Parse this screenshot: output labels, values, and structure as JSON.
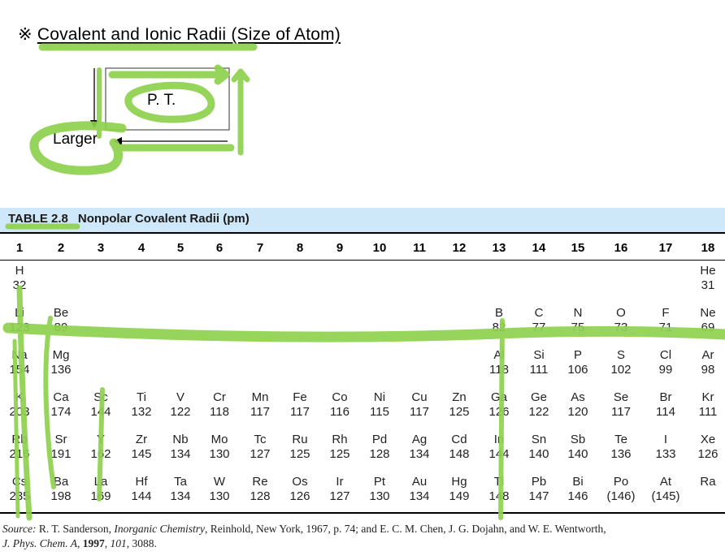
{
  "heading": {
    "symbol": "※",
    "text": "Covalent and Ionic Radii (Size of Atom)"
  },
  "diagram": {
    "box_label": "P. T.",
    "arrow_label": "Larger"
  },
  "table": {
    "number": "TABLE 2.8",
    "title": "Nonpolar Covalent Radii (pm)",
    "groups": [
      "1",
      "2",
      "3",
      "4",
      "5",
      "6",
      "7",
      "8",
      "9",
      "10",
      "11",
      "12",
      "13",
      "14",
      "15",
      "16",
      "17",
      "18"
    ],
    "rows": [
      [
        [
          "H",
          "32"
        ],
        null,
        null,
        null,
        null,
        null,
        null,
        null,
        null,
        null,
        null,
        null,
        null,
        null,
        null,
        null,
        null,
        [
          "He",
          "31"
        ]
      ],
      [
        [
          "Li",
          "123"
        ],
        [
          "Be",
          "89"
        ],
        null,
        null,
        null,
        null,
        null,
        null,
        null,
        null,
        null,
        null,
        [
          "B",
          "82"
        ],
        [
          "C",
          "77"
        ],
        [
          "N",
          "75"
        ],
        [
          "O",
          "73"
        ],
        [
          "F",
          "71"
        ],
        [
          "Ne",
          "69"
        ]
      ],
      [
        [
          "Na",
          "154"
        ],
        [
          "Mg",
          "136"
        ],
        null,
        null,
        null,
        null,
        null,
        null,
        null,
        null,
        null,
        null,
        [
          "Al",
          "118"
        ],
        [
          "Si",
          "111"
        ],
        [
          "P",
          "106"
        ],
        [
          "S",
          "102"
        ],
        [
          "Cl",
          "99"
        ],
        [
          "Ar",
          "98"
        ]
      ],
      [
        [
          "K",
          "203"
        ],
        [
          "Ca",
          "174"
        ],
        [
          "Sc",
          "144"
        ],
        [
          "Ti",
          "132"
        ],
        [
          "V",
          "122"
        ],
        [
          "Cr",
          "118"
        ],
        [
          "Mn",
          "117"
        ],
        [
          "Fe",
          "117"
        ],
        [
          "Co",
          "116"
        ],
        [
          "Ni",
          "115"
        ],
        [
          "Cu",
          "117"
        ],
        [
          "Zn",
          "125"
        ],
        [
          "Ga",
          "126"
        ],
        [
          "Ge",
          "122"
        ],
        [
          "As",
          "120"
        ],
        [
          "Se",
          "117"
        ],
        [
          "Br",
          "114"
        ],
        [
          "Kr",
          "111"
        ]
      ],
      [
        [
          "Rb",
          "216"
        ],
        [
          "Sr",
          "191"
        ],
        [
          "Y",
          "162"
        ],
        [
          "Zr",
          "145"
        ],
        [
          "Nb",
          "134"
        ],
        [
          "Mo",
          "130"
        ],
        [
          "Tc",
          "127"
        ],
        [
          "Ru",
          "125"
        ],
        [
          "Rh",
          "125"
        ],
        [
          "Pd",
          "128"
        ],
        [
          "Ag",
          "134"
        ],
        [
          "Cd",
          "148"
        ],
        [
          "In",
          "144"
        ],
        [
          "Sn",
          "140"
        ],
        [
          "Sb",
          "140"
        ],
        [
          "Te",
          "136"
        ],
        [
          "I",
          "133"
        ],
        [
          "Xe",
          "126"
        ]
      ],
      [
        [
          "Cs",
          "235"
        ],
        [
          "Ba",
          "198"
        ],
        [
          "La",
          "169"
        ],
        [
          "Hf",
          "144"
        ],
        [
          "Ta",
          "134"
        ],
        [
          "W",
          "130"
        ],
        [
          "Re",
          "128"
        ],
        [
          "Os",
          "126"
        ],
        [
          "Ir",
          "127"
        ],
        [
          "Pt",
          "130"
        ],
        [
          "Au",
          "134"
        ],
        [
          "Hg",
          "149"
        ],
        [
          "Tl",
          "148"
        ],
        [
          "Pb",
          "147"
        ],
        [
          "Bi",
          "146"
        ],
        [
          "Po",
          "(146)"
        ],
        [
          "At",
          "(145)"
        ],
        [
          "Ra",
          ""
        ]
      ]
    ]
  },
  "source": {
    "line1_prefix": "Source:",
    "line1_a": " R. T. Sanderson, ",
    "line1_book": "Inorganic Chemistry",
    "line1_b": ", Reinhold, New York, 1967, p. 74; and E. C. M. Chen, J. G. Dojahn, and W. E. Wentworth,",
    "line2_journal": "J. Phys. Chem. A",
    "line2_a": ", ",
    "line2_year": "1997",
    "line2_b": ", ",
    "line2_vol": "101",
    "line2_c": ", 3088."
  },
  "colors": {
    "highlight": "#8fd14f",
    "table_bar": "#cfe8f9"
  }
}
